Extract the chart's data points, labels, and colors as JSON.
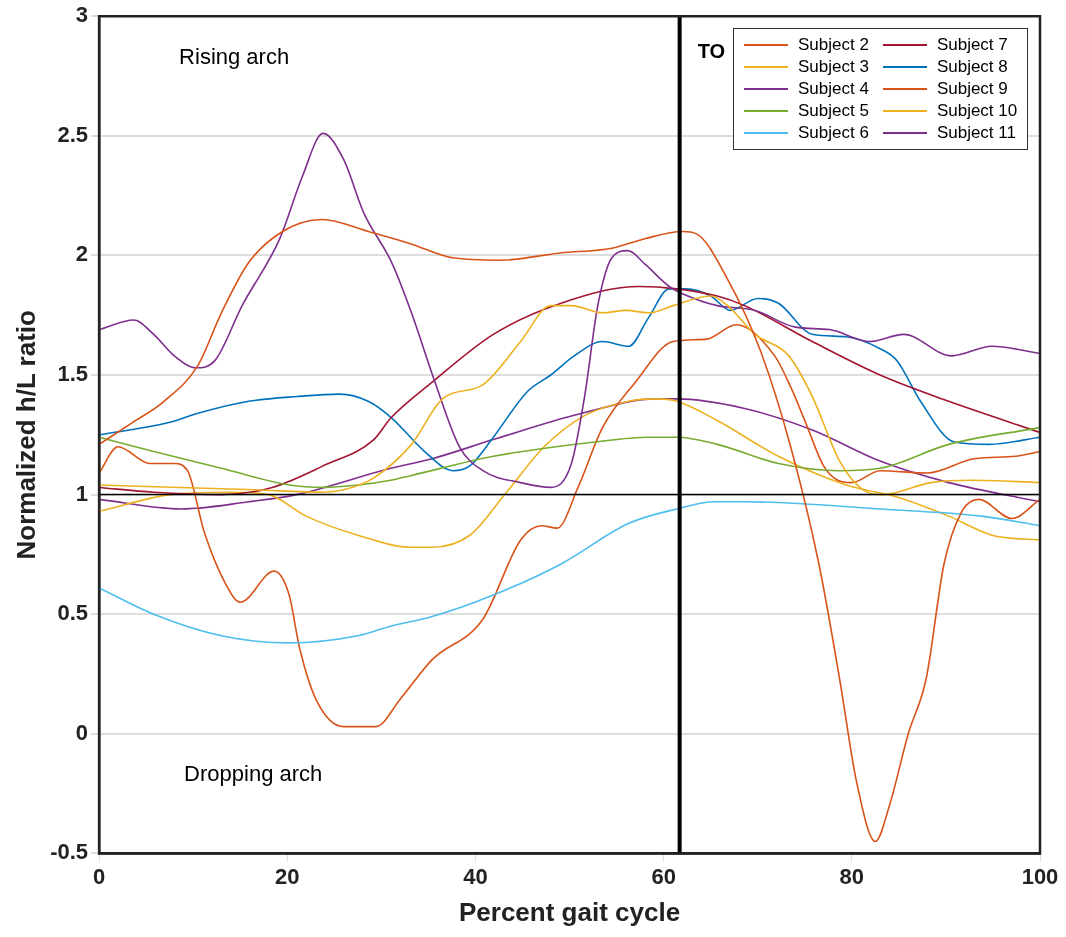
{
  "chart_data": {
    "type": "line",
    "xlabel": "Percent gait cycle",
    "ylabel": "Normalized h/L ratio",
    "xlim": [
      0,
      100
    ],
    "xticks": [
      0,
      20,
      40,
      60,
      80,
      100
    ],
    "ylim": [
      -0.5,
      3
    ],
    "yticks": [
      -0.5,
      0,
      0.5,
      1,
      1.5,
      2,
      2.5,
      3
    ],
    "grid": "y",
    "legend": "top right",
    "marker": "none",
    "line_style": "solid",
    "annotations": [
      "Rising arch",
      "Dropping arch"
    ],
    "ref_lines": [
      {
        "axis": "y",
        "value": 1,
        "color": "#000000"
      },
      {
        "axis": "x",
        "value": 61.7,
        "label": "TO",
        "color": "#000000"
      }
    ],
    "series": [
      {
        "name": "Subject 2",
        "color": "#d95319",
        "x": [
          0,
          3.5,
          6.9,
          10.5,
          13,
          15.9,
          19.5,
          23.7,
          28.6,
          33,
          37.6,
          42.6,
          49,
          54.5,
          58,
          62,
          63.5,
          66.8,
          70.3,
          73.5,
          76.5,
          78.7,
          80.5,
          82.5,
          84,
          86,
          87.9,
          89.8,
          91.7,
          93.5,
          97,
          100
        ],
        "values": [
          1.21,
          1.3,
          1.39,
          1.54,
          1.76,
          1.97,
          2.1,
          2.15,
          2.1,
          2.05,
          1.99,
          1.98,
          2.01,
          2.03,
          2.07,
          2.1,
          2.09,
          1.9,
          1.6,
          1.2,
          0.71,
          0.23,
          -0.2,
          -0.45,
          -0.3,
          0.0,
          0.23,
          0.71,
          0.93,
          0.98,
          0.9,
          0.98
        ]
      },
      {
        "name": "Subject 3",
        "color": "#edb120",
        "x": [
          0,
          16.6,
          23.8,
          26,
          29.2,
          33.2,
          36.5,
          40.8,
          44.8,
          48,
          50.2,
          53.5,
          56,
          58.5,
          61,
          65,
          66.8,
          69.7,
          73.3,
          75.8,
          78.7,
          81.2,
          83.3,
          88.4,
          92.7,
          100
        ],
        "values": [
          1.04,
          1.02,
          1.01,
          1.02,
          1.07,
          1.21,
          1.4,
          1.46,
          1.64,
          1.79,
          1.79,
          1.76,
          1.77,
          1.76,
          1.79,
          1.83,
          1.79,
          1.67,
          1.58,
          1.41,
          1.14,
          1.02,
          1.0,
          1.05,
          1.06,
          1.05
        ]
      },
      {
        "name": "Subject 4",
        "color": "#7e2f8e",
        "x": [
          0,
          3.7,
          5.8,
          8,
          10.3,
          12.3,
          15.2,
          19.2,
          21.6,
          23.8,
          26,
          28.1,
          31.1,
          33.2,
          35.7,
          38.3,
          40.8,
          44.8,
          48,
          50.2,
          51.6,
          53,
          54.5,
          56.2,
          58.1,
          60.6,
          62,
          65.7,
          69.7,
          74,
          77.6,
          81.9,
          85.5,
          90.6,
          94.9,
          100
        ],
        "values": [
          1.69,
          1.73,
          1.67,
          1.58,
          1.53,
          1.56,
          1.79,
          2.07,
          2.33,
          2.51,
          2.4,
          2.18,
          1.97,
          1.76,
          1.47,
          1.2,
          1.1,
          1.05,
          1.03,
          1.13,
          1.41,
          1.79,
          1.99,
          2.02,
          1.96,
          1.87,
          1.84,
          1.79,
          1.77,
          1.7,
          1.69,
          1.64,
          1.67,
          1.58,
          1.62,
          1.59
        ]
      },
      {
        "name": "Subject 5",
        "color": "#77ac30",
        "x": [
          0,
          5.8,
          13,
          20.2,
          23.8,
          27.5,
          31,
          33.2,
          41.9,
          52.7,
          58.4,
          61.4,
          65.7,
          72.2,
          78.7,
          83,
          90.3,
          100
        ],
        "values": [
          1.24,
          1.18,
          1.11,
          1.04,
          1.03,
          1.04,
          1.06,
          1.08,
          1.16,
          1.22,
          1.24,
          1.24,
          1.21,
          1.13,
          1.1,
          1.11,
          1.21,
          1.28
        ]
      },
      {
        "name": "Subject 6",
        "color": "#4dbeee",
        "x": [
          0,
          5.8,
          13,
          20.2,
          27.5,
          31,
          35.4,
          41.9,
          49.1,
          56.3,
          61.4,
          65.4,
          68.6,
          83,
          93.8,
          100
        ],
        "values": [
          0.61,
          0.5,
          0.41,
          0.38,
          0.41,
          0.45,
          0.49,
          0.58,
          0.71,
          0.88,
          0.94,
          0.97,
          0.97,
          0.94,
          0.91,
          0.87
        ]
      },
      {
        "name": "Subject 7",
        "color": "#a2142f",
        "x": [
          0,
          5.8,
          13,
          18.4,
          23.8,
          29.2,
          31,
          35.4,
          41.9,
          49.1,
          57.4,
          61.4,
          65.7,
          68.6,
          75.8,
          83,
          90.3,
          100
        ],
        "values": [
          1.03,
          1.01,
          1.0,
          1.03,
          1.12,
          1.23,
          1.32,
          1.47,
          1.67,
          1.8,
          1.87,
          1.86,
          1.83,
          1.79,
          1.64,
          1.5,
          1.39,
          1.26
        ]
      },
      {
        "name": "Subject 8",
        "color": "#0072bd",
        "x": [
          0,
          7.3,
          10.5,
          15.9,
          21,
          25.6,
          28.6,
          31.1,
          34.6,
          37.6,
          39.4,
          41.9,
          45.5,
          48,
          50.5,
          53.5,
          56.3,
          58.4,
          60.6,
          62.4,
          65,
          67.1,
          70,
          72.2,
          75.8,
          79.4,
          83,
          84.8,
          87.3,
          90.9,
          94.6,
          100
        ],
        "values": [
          1.25,
          1.3,
          1.34,
          1.39,
          1.41,
          1.42,
          1.39,
          1.32,
          1.18,
          1.1,
          1.12,
          1.24,
          1.43,
          1.5,
          1.58,
          1.64,
          1.62,
          1.74,
          1.86,
          1.86,
          1.83,
          1.77,
          1.82,
          1.8,
          1.67,
          1.66,
          1.61,
          1.56,
          1.39,
          1.22,
          1.21,
          1.24
        ]
      },
      {
        "name": "Subject 9",
        "color": "#d95319",
        "x": [
          0,
          2,
          5.4,
          8,
          9.4,
          11.2,
          13.4,
          15,
          18.6,
          20.2,
          21.3,
          23.1,
          26,
          29.4,
          32.1,
          35.4,
          40.8,
          44.8,
          47,
          48.7,
          50.9,
          53.5,
          57,
          61,
          64.6,
          67.7,
          71.8,
          73.5,
          75.1,
          77,
          78.5,
          80,
          83,
          88,
          93,
          97.4,
          100
        ],
        "values": [
          1.09,
          1.2,
          1.13,
          1.13,
          1.1,
          0.84,
          0.63,
          0.55,
          0.68,
          0.58,
          0.36,
          0.14,
          0.03,
          0.03,
          0.15,
          0.31,
          0.48,
          0.81,
          0.87,
          0.86,
          1.03,
          1.28,
          1.47,
          1.64,
          1.65,
          1.71,
          1.58,
          1.45,
          1.3,
          1.12,
          1.06,
          1.05,
          1.1,
          1.09,
          1.15,
          1.16,
          1.18
        ]
      },
      {
        "name": "Subject 10",
        "color": "#edb120",
        "x": [
          0,
          7.6,
          14,
          18,
          22,
          27.5,
          33.2,
          35.4,
          39.4,
          43.3,
          47.3,
          51.6,
          56.3,
          59.2,
          61.4,
          65.7,
          72.2,
          79.4,
          84.8,
          90.3,
          94.9,
          100
        ],
        "values": [
          0.93,
          1.0,
          1.01,
          1.0,
          0.91,
          0.83,
          0.78,
          0.78,
          0.83,
          1.01,
          1.2,
          1.33,
          1.39,
          1.4,
          1.39,
          1.31,
          1.16,
          1.04,
          0.99,
          0.91,
          0.83,
          0.81
        ]
      },
      {
        "name": "Subject 11",
        "color": "#7e2f8e",
        "x": [
          0,
          8.7,
          15.9,
          21,
          31,
          35.4,
          41.9,
          51.3,
          59.2,
          61.4,
          68.6,
          75.8,
          83,
          90.3,
          100
        ],
        "values": [
          0.98,
          0.94,
          0.97,
          1.0,
          1.11,
          1.15,
          1.23,
          1.34,
          1.4,
          1.4,
          1.36,
          1.27,
          1.14,
          1.05,
          0.97
        ]
      }
    ]
  }
}
